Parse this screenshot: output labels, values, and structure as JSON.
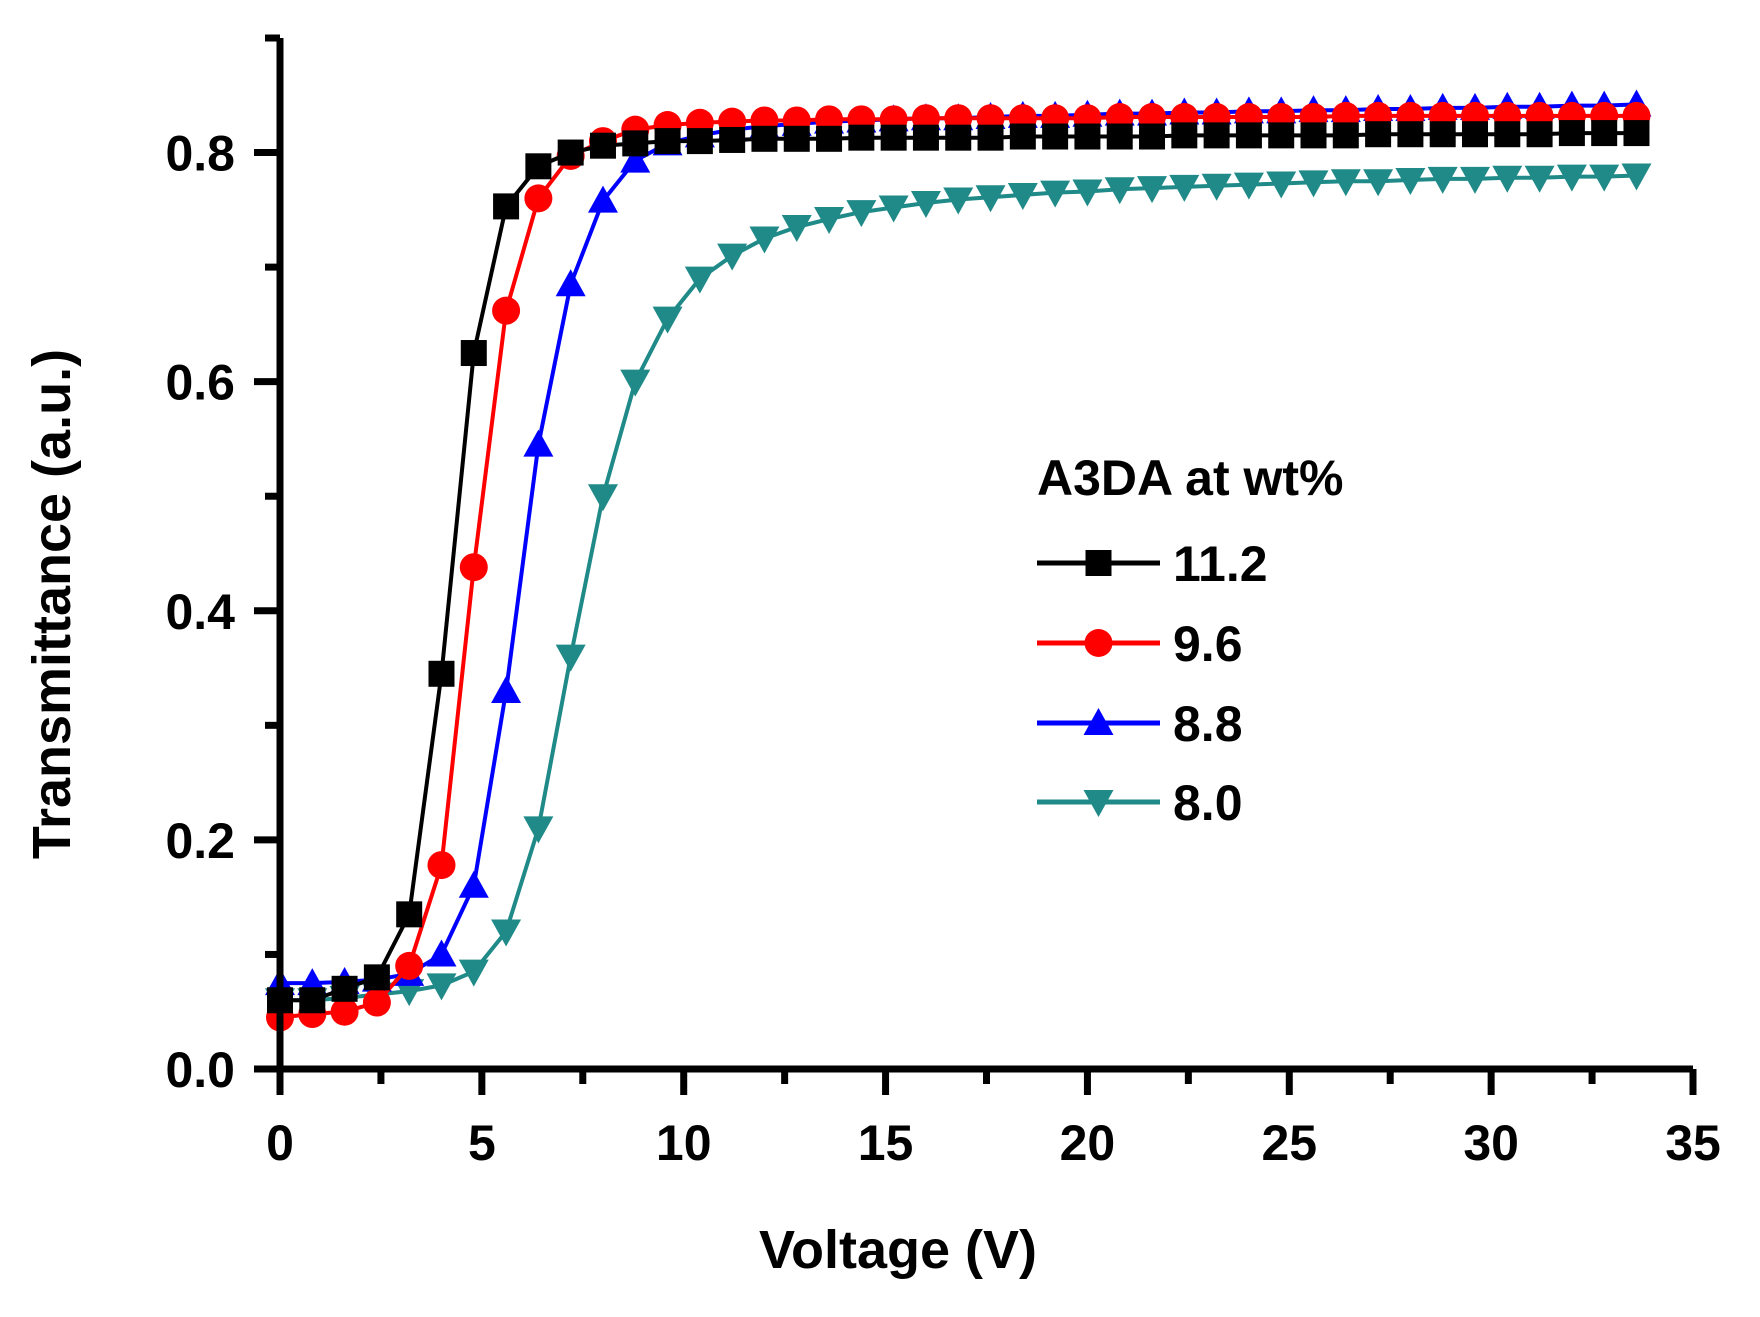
{
  "chart_data": {
    "type": "line",
    "title": "",
    "xlabel": "Voltage (V)",
    "ylabel": "Transmittance (a.u.)",
    "xlim": [
      0,
      35
    ],
    "ylim": [
      0,
      0.9
    ],
    "xticks": [
      0,
      5,
      10,
      15,
      20,
      25,
      30,
      35
    ],
    "xtick_labels": [
      "0",
      "5",
      "10",
      "15",
      "20",
      "25",
      "30",
      "35"
    ],
    "yticks": [
      0.0,
      0.2,
      0.4,
      0.6,
      0.8
    ],
    "ytick_labels": [
      "0.0",
      "0.2",
      "0.4",
      "0.6",
      "0.8"
    ],
    "grid": false,
    "legend_title": "A3DA at wt%",
    "legend_position": "center-right",
    "x_step": 0.8,
    "x_count": 43,
    "series": [
      {
        "name": "11.2",
        "marker": "square",
        "color": "#000000",
        "values": [
          0.06,
          0.06,
          0.07,
          0.08,
          0.135,
          0.345,
          0.625,
          0.753,
          0.788,
          0.8,
          0.806,
          0.808,
          0.81,
          0.81,
          0.811,
          0.812,
          0.812,
          0.812,
          0.813,
          0.813,
          0.813,
          0.813,
          0.813,
          0.814,
          0.814,
          0.814,
          0.814,
          0.814,
          0.815,
          0.815,
          0.815,
          0.815,
          0.815,
          0.815,
          0.816,
          0.816,
          0.816,
          0.816,
          0.816,
          0.816,
          0.817,
          0.817,
          0.817
        ]
      },
      {
        "name": "9.6",
        "marker": "circle",
        "color": "#ff0000",
        "values": [
          0.045,
          0.048,
          0.05,
          0.058,
          0.09,
          0.178,
          0.438,
          0.662,
          0.76,
          0.797,
          0.81,
          0.82,
          0.824,
          0.826,
          0.827,
          0.828,
          0.828,
          0.829,
          0.829,
          0.829,
          0.83,
          0.83,
          0.83,
          0.83,
          0.83,
          0.83,
          0.831,
          0.831,
          0.831,
          0.831,
          0.831,
          0.831,
          0.831,
          0.832,
          0.832,
          0.832,
          0.832,
          0.832,
          0.832,
          0.832,
          0.832,
          0.832,
          0.832
        ]
      },
      {
        "name": "8.8",
        "marker": "triangle-up",
        "color": "#0000ff",
        "values": [
          0.075,
          0.075,
          0.076,
          0.078,
          0.083,
          0.1,
          0.16,
          0.33,
          0.545,
          0.685,
          0.758,
          0.793,
          0.808,
          0.815,
          0.82,
          0.823,
          0.825,
          0.827,
          0.828,
          0.829,
          0.83,
          0.83,
          0.831,
          0.832,
          0.832,
          0.833,
          0.834,
          0.834,
          0.835,
          0.835,
          0.836,
          0.836,
          0.837,
          0.837,
          0.838,
          0.838,
          0.839,
          0.839,
          0.84,
          0.84,
          0.841,
          0.841,
          0.842
        ]
      },
      {
        "name": "8.0",
        "marker": "triangle-down",
        "color": "#1f8a88",
        "values": [
          0.06,
          0.06,
          0.062,
          0.065,
          0.068,
          0.073,
          0.085,
          0.12,
          0.21,
          0.36,
          0.5,
          0.6,
          0.655,
          0.69,
          0.71,
          0.725,
          0.735,
          0.742,
          0.748,
          0.752,
          0.756,
          0.759,
          0.761,
          0.763,
          0.765,
          0.766,
          0.768,
          0.769,
          0.77,
          0.771,
          0.772,
          0.773,
          0.774,
          0.775,
          0.775,
          0.776,
          0.777,
          0.777,
          0.778,
          0.778,
          0.779,
          0.779,
          0.78
        ]
      }
    ]
  }
}
